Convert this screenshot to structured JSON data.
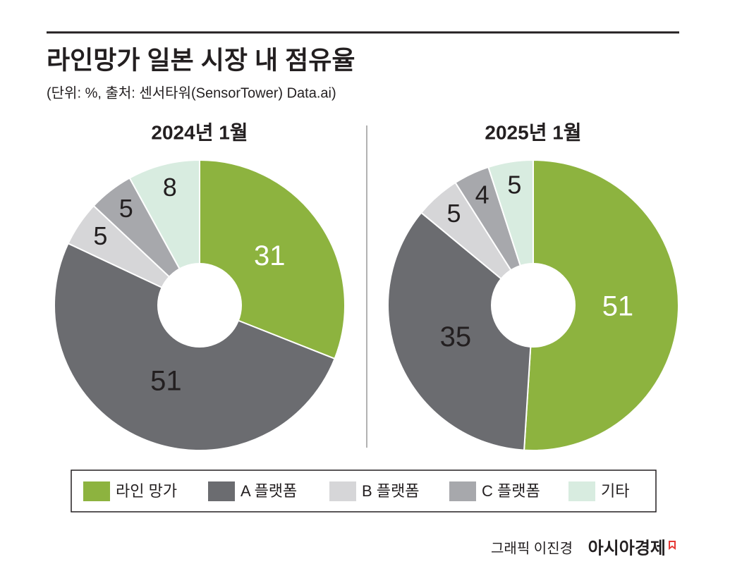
{
  "header": {
    "title": "라인망가 일본 시장 내 점유율",
    "subtitle": "(단위: %, 출처: 센서타워(SensorTower) Data.ai)",
    "credit": "그래픽 이진경",
    "brand": "아시아경제"
  },
  "chart_data": [
    {
      "type": "pie",
      "title": "2024년 1월",
      "categories": [
        "라인 망가",
        "A 플랫폼",
        "B 플랫폼",
        "C 플랫폼",
        "기타"
      ],
      "values": [
        31,
        51,
        5,
        5,
        8
      ],
      "colors": [
        "#8db33f",
        "#6b6c70",
        "#d6d6d8",
        "#a7a8ac",
        "#d8ece0"
      ]
    },
    {
      "type": "pie",
      "title": "2025년 1월",
      "categories": [
        "라인 망가",
        "A 플랫폼",
        "B 플랫폼",
        "C 플랫폼",
        "기타"
      ],
      "values": [
        51,
        35,
        5,
        4,
        5
      ],
      "colors": [
        "#8db33f",
        "#6b6c70",
        "#d6d6d8",
        "#a7a8ac",
        "#d8ece0"
      ]
    }
  ]
}
